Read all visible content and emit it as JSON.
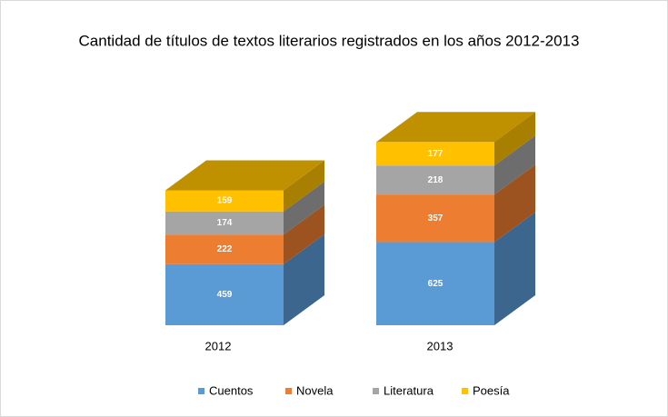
{
  "chart_data": {
    "type": "bar",
    "stacked": true,
    "three_d": true,
    "title": "Cantidad de títulos de textos literarios registrados en los años 2012-2013",
    "categories": [
      "2012",
      "2013"
    ],
    "series": [
      {
        "name": "Cuentos",
        "color": "#5b9bd5",
        "values": [
          459,
          625
        ]
      },
      {
        "name": "Novela",
        "color": "#ed7d31",
        "values": [
          222,
          357
        ]
      },
      {
        "name": "Literatura",
        "color": "#a5a5a5",
        "values": [
          174,
          218
        ]
      },
      {
        "name": "Poesía",
        "color": "#ffc000",
        "values": [
          159,
          177
        ]
      }
    ],
    "legend": "bottom"
  }
}
